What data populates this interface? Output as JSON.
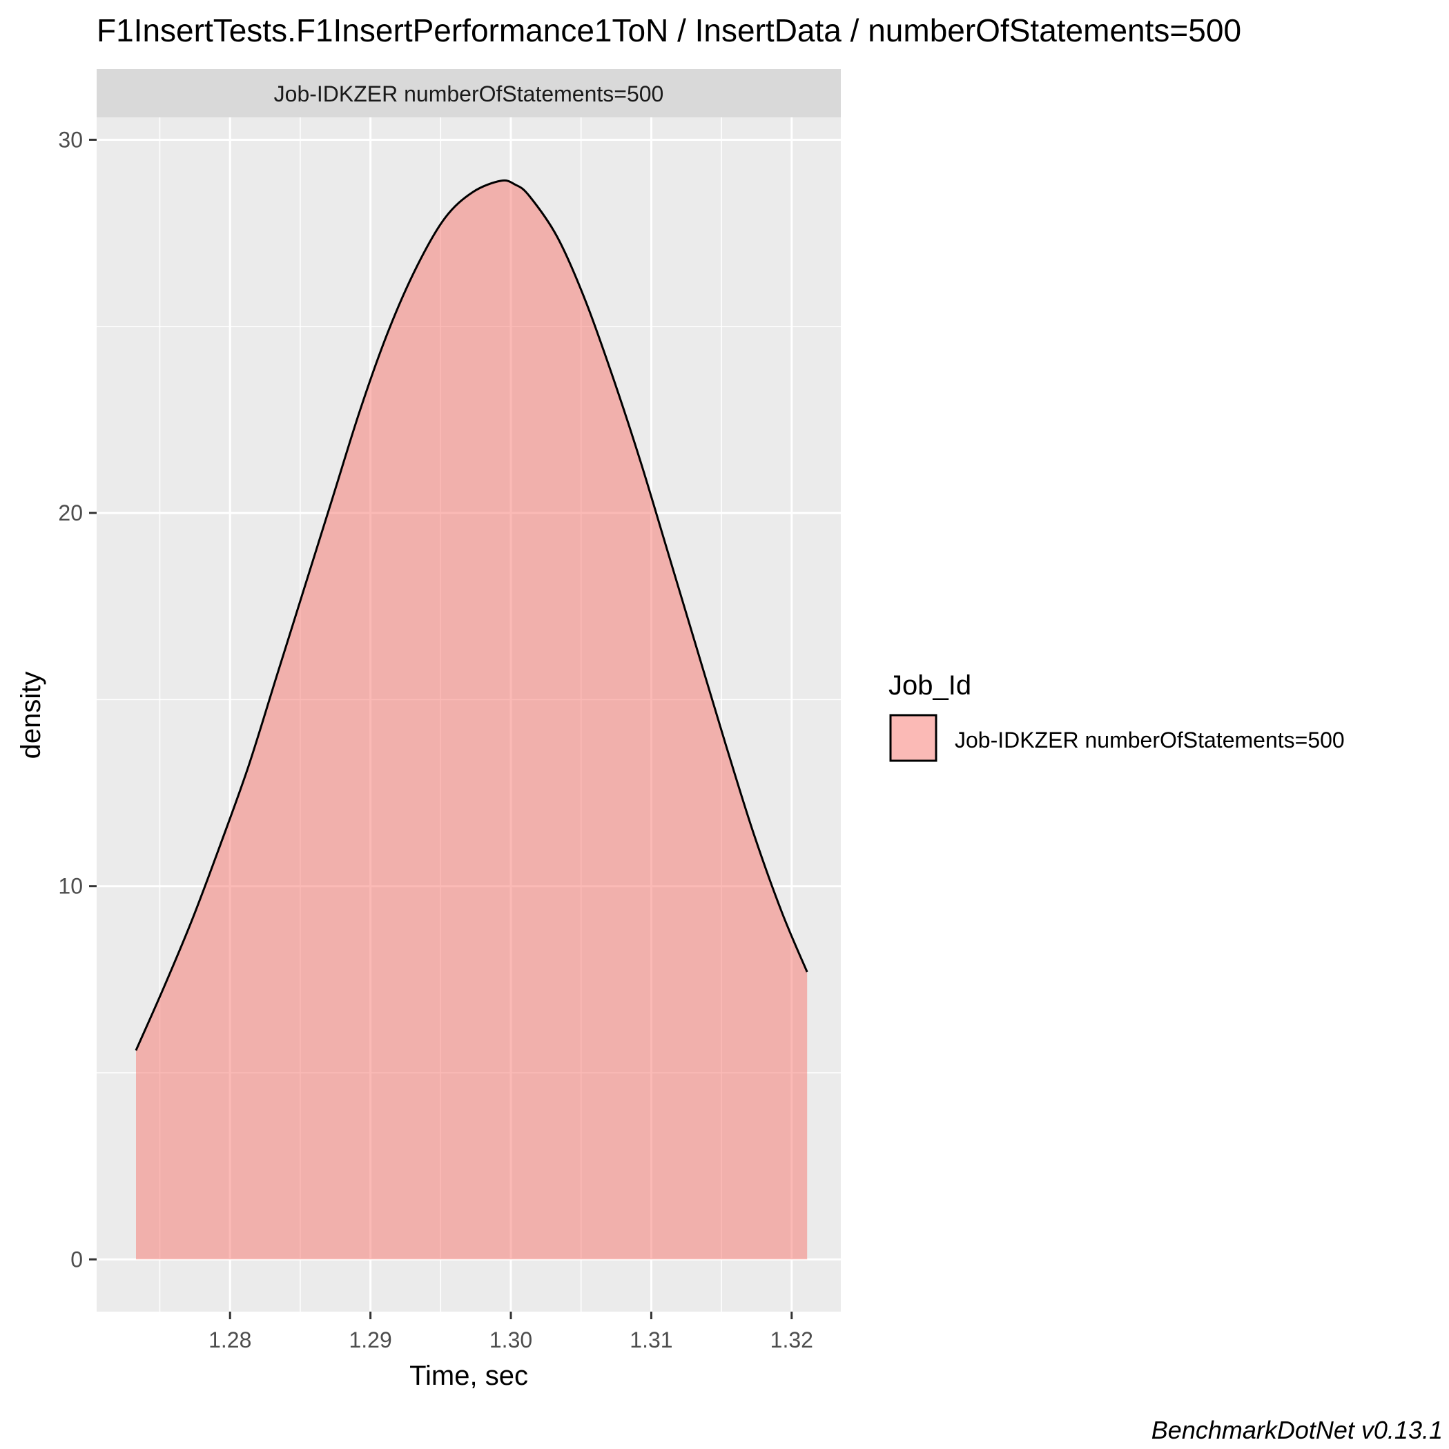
{
  "chart_data": {
    "type": "area",
    "title": "F1InsertTests.F1InsertPerformance1ToN / InsertData / numberOfStatements=500",
    "facet_label": "Job-IDKZER numberOfStatements=500",
    "xlabel": "Time, sec",
    "ylabel": "density",
    "xlim": [
      1.2705,
      1.3235
    ],
    "ylim": [
      -1.4,
      30.6
    ],
    "x_ticks": [
      1.28,
      1.29,
      1.3,
      1.31,
      1.32
    ],
    "x_tick_labels": [
      "1.28",
      "1.29",
      "1.30",
      "1.31",
      "1.32"
    ],
    "y_ticks": [
      0,
      10,
      20,
      30
    ],
    "y_tick_labels": [
      "0",
      "10",
      "20",
      "30"
    ],
    "grid": true,
    "legend": {
      "title": "Job_Id",
      "position": "right",
      "entries": [
        {
          "label": "Job-IDKZER numberOfStatements=500",
          "color": "#F8766D"
        }
      ]
    },
    "series": [
      {
        "name": "Job-IDKZER numberOfStatements=500",
        "color": "#F8766D",
        "x": [
          1.2733,
          1.2753,
          1.2773,
          1.2793,
          1.2813,
          1.2833,
          1.2853,
          1.2873,
          1.2893,
          1.2913,
          1.2933,
          1.2953,
          1.2973,
          1.2993,
          1.3003,
          1.3013,
          1.3033,
          1.3053,
          1.3073,
          1.3093,
          1.3113,
          1.3133,
          1.3153,
          1.3173,
          1.3193,
          1.3211
        ],
        "y": [
          5.6,
          7.3,
          9.1,
          11.1,
          13.2,
          15.6,
          18.0,
          20.4,
          22.8,
          24.9,
          26.6,
          27.9,
          28.6,
          28.9,
          28.8,
          28.5,
          27.4,
          25.7,
          23.6,
          21.3,
          18.8,
          16.3,
          13.8,
          11.4,
          9.3,
          7.7
        ]
      }
    ]
  },
  "footer": {
    "caption": "BenchmarkDotNet v0.13.1"
  }
}
